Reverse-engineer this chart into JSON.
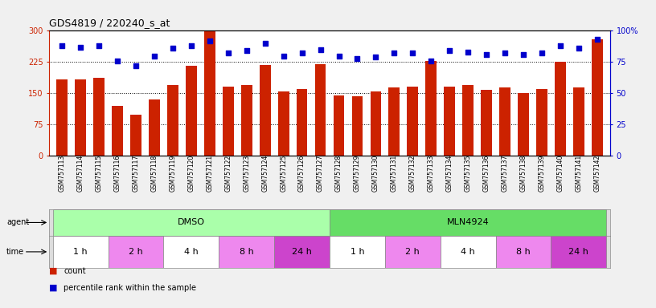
{
  "title": "GDS4819 / 220240_s_at",
  "samples": [
    "GSM757113",
    "GSM757114",
    "GSM757115",
    "GSM757116",
    "GSM757117",
    "GSM757118",
    "GSM757119",
    "GSM757120",
    "GSM757121",
    "GSM757122",
    "GSM757123",
    "GSM757124",
    "GSM757125",
    "GSM757126",
    "GSM757127",
    "GSM757128",
    "GSM757129",
    "GSM757130",
    "GSM757131",
    "GSM757132",
    "GSM757133",
    "GSM757134",
    "GSM757135",
    "GSM757136",
    "GSM757137",
    "GSM757138",
    "GSM757139",
    "GSM757140",
    "GSM757141",
    "GSM757142"
  ],
  "counts": [
    183,
    183,
    187,
    120,
    98,
    135,
    170,
    215,
    300,
    165,
    170,
    218,
    155,
    160,
    220,
    145,
    143,
    155,
    163,
    165,
    227,
    165,
    170,
    158,
    163,
    150,
    160,
    225,
    163,
    280
  ],
  "percentile_ranks": [
    88,
    87,
    88,
    76,
    72,
    80,
    86,
    88,
    92,
    82,
    84,
    90,
    80,
    82,
    85,
    80,
    78,
    79,
    82,
    82,
    76,
    84,
    83,
    81,
    82,
    81,
    82,
    88,
    86,
    93
  ],
  "bar_color": "#cc2200",
  "dot_color": "#0000cc",
  "ylim_left": [
    0,
    300
  ],
  "ylim_right": [
    0,
    100
  ],
  "yticks_left": [
    0,
    75,
    150,
    225,
    300
  ],
  "yticks_right": [
    0,
    25,
    50,
    75,
    100
  ],
  "ytick_labels_right": [
    "0",
    "25",
    "50",
    "75",
    "100%"
  ],
  "hlines": [
    75,
    150,
    225
  ],
  "agent_groups": [
    {
      "text": "DMSO",
      "start": 0,
      "end": 15,
      "color": "#aaffaa"
    },
    {
      "text": "MLN4924",
      "start": 15,
      "end": 30,
      "color": "#66dd66"
    }
  ],
  "time_groups": [
    {
      "text": "1 h",
      "start": 0,
      "end": 3,
      "color": "#ffffff"
    },
    {
      "text": "2 h",
      "start": 3,
      "end": 6,
      "color": "#ee88ee"
    },
    {
      "text": "4 h",
      "start": 6,
      "end": 9,
      "color": "#ffffff"
    },
    {
      "text": "8 h",
      "start": 9,
      "end": 12,
      "color": "#ee88ee"
    },
    {
      "text": "24 h",
      "start": 12,
      "end": 15,
      "color": "#cc44cc"
    },
    {
      "text": "1 h",
      "start": 15,
      "end": 18,
      "color": "#ffffff"
    },
    {
      "text": "2 h",
      "start": 18,
      "end": 21,
      "color": "#ee88ee"
    },
    {
      "text": "4 h",
      "start": 21,
      "end": 24,
      "color": "#ffffff"
    },
    {
      "text": "8 h",
      "start": 24,
      "end": 27,
      "color": "#ee88ee"
    },
    {
      "text": "24 h",
      "start": 27,
      "end": 30,
      "color": "#cc44cc"
    }
  ],
  "legend": [
    {
      "label": "count",
      "color": "#cc2200"
    },
    {
      "label": "percentile rank within the sample",
      "color": "#0000cc"
    }
  ],
  "fig_bg": "#f0f0f0",
  "plot_bg": "#ffffff",
  "row_border": "#888888",
  "label_fontsize": 7,
  "tick_fontsize": 6,
  "bar_fontsize": 5.5,
  "row_fontsize": 8
}
